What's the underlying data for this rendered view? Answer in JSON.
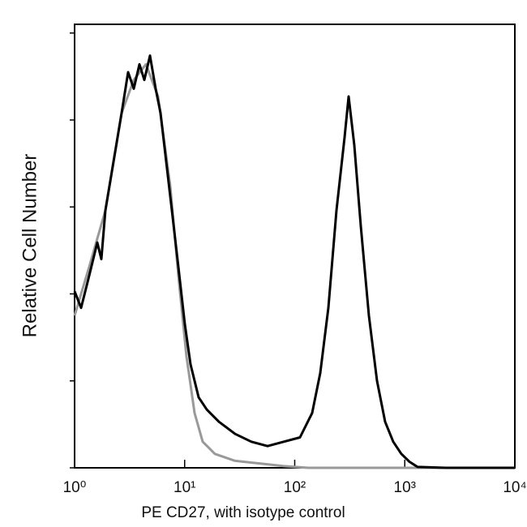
{
  "chart_data": {
    "type": "line",
    "xlabel": "PE  CD27,  with isotype control",
    "ylabel": "Relative Cell Number",
    "xscale": "log",
    "xlim": [
      1,
      10000
    ],
    "xticks": [
      {
        "value": 1,
        "label": "10⁰"
      },
      {
        "value": 10,
        "label": "10¹"
      },
      {
        "value": 100,
        "label": "10²"
      },
      {
        "value": 1000,
        "label": "10³"
      },
      {
        "value": 10000,
        "label": "10⁴"
      }
    ],
    "ylim": [
      0,
      5.1
    ],
    "yticks": [
      0,
      1,
      2,
      3,
      4,
      5
    ],
    "series": [
      {
        "color": "#999999",
        "x": [
          1,
          1.357,
          1.905,
          2.675,
          3.45,
          4.449,
          5.737,
          7.398,
          8.768,
          10.39,
          12.31,
          14.58,
          18.81,
          28.74,
          47.83,
          79.56,
          132.3,
          10000
        ],
        "values": [
          1.75,
          2.31,
          2.96,
          4.08,
          4.46,
          4.64,
          4.27,
          3.24,
          2.21,
          1.28,
          0.63,
          0.3,
          0.16,
          0.08,
          0.05,
          0.02,
          0,
          0
        ]
      },
      {
        "color": "#000000",
        "x": [
          1,
          1.145,
          1.357,
          1.608,
          1.751,
          1.905,
          2.257,
          2.675,
          3.063,
          3.45,
          3.886,
          4.3,
          4.843,
          5.453,
          6.036,
          6.8,
          7.656,
          8.768,
          10.04,
          11.31,
          13.4,
          15.88,
          20.48,
          28.74,
          40.36,
          56.64,
          79.56,
          111.7,
          144,
          170.6,
          202.2,
          239.5,
          283.8,
          309,
          347.9,
          398.6,
          472.1,
          559.4,
          662.9,
          785.2,
          930.4,
          1103,
          1306,
          2364,
          10000
        ],
        "values": [
          2.03,
          1.84,
          2.21,
          2.59,
          2.4,
          2.96,
          3.52,
          4.08,
          4.55,
          4.36,
          4.64,
          4.46,
          4.74,
          4.36,
          4.08,
          3.52,
          2.96,
          2.31,
          1.65,
          1.19,
          0.81,
          0.67,
          0.53,
          0.39,
          0.3,
          0.25,
          0.3,
          0.35,
          0.63,
          1.09,
          1.84,
          2.96,
          3.8,
          4.27,
          3.71,
          2.78,
          1.75,
          1.0,
          0.53,
          0.3,
          0.16,
          0.07,
          0.01,
          0,
          0
        ]
      }
    ]
  }
}
